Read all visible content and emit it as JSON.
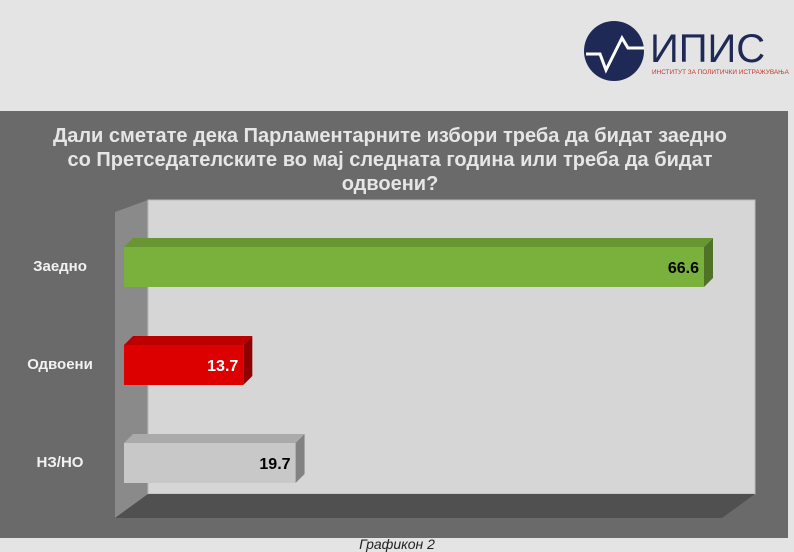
{
  "logo": {
    "name": "ИПИС",
    "subtitle": "ИНСТИТУТ ЗА ПОЛИТИЧКИ ИСТРАЖУВАЊА",
    "color": "#1e2a55",
    "accent": "#c0392b"
  },
  "caption": "Графикон 2",
  "chart_data": {
    "type": "bar",
    "orientation": "horizontal",
    "style": "3d",
    "title": "Дали сметате дека Парламентарните избори треба да бидат заедно со Претседателските во мај следната година или треба да бидат одвоени?",
    "categories": [
      "Заедно",
      "Одвоени",
      "НЗ/НО"
    ],
    "values": [
      66.6,
      13.7,
      19.7
    ],
    "value_labels": [
      "66.6",
      "13.7",
      "19.7"
    ],
    "colors": [
      "#7ab03c",
      "#dd0000",
      "#c8c8c8"
    ],
    "label_colors": [
      "#000000",
      "#ffffff",
      "#000000"
    ],
    "grid": false,
    "legend": "none"
  }
}
